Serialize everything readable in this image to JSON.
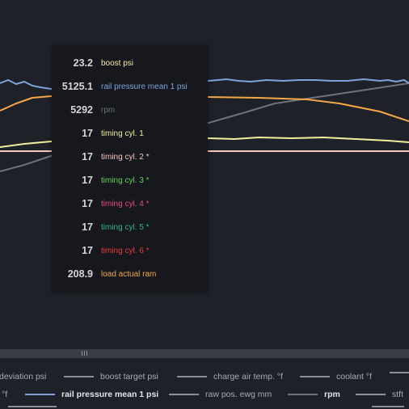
{
  "tooltip": {
    "rows": [
      {
        "value": "23.2",
        "name": "boost psi",
        "color": "#f3e7a9"
      },
      {
        "value": "5125.1",
        "name": "rail pressure mean 1 psi",
        "color": "#7ea3db"
      },
      {
        "value": "5292",
        "name": "rpm",
        "color": "#6d717a"
      },
      {
        "value": "17",
        "name": "timing cyl. 1",
        "color": "#f0ef9b"
      },
      {
        "value": "17",
        "name": "timing cyl. 2 *",
        "color": "#f8c8bf"
      },
      {
        "value": "17",
        "name": "timing cyl. 3 *",
        "color": "#66cf56"
      },
      {
        "value": "17",
        "name": "timing cyl. 4 *",
        "color": "#e8477a"
      },
      {
        "value": "17",
        "name": "timing cyl. 5 *",
        "color": "#2fb68a"
      },
      {
        "value": "17",
        "name": "timing cyl. 6 *",
        "color": "#ea3b3b"
      },
      {
        "value": "208.9",
        "name": "load actual ram",
        "color": "#f5a74a"
      }
    ]
  },
  "legend": {
    "row1": [
      {
        "label": "deviation psi",
        "color": "#8b8f98"
      },
      {
        "label": "boost target psi",
        "color": "#8b8f98"
      },
      {
        "label": "charge air temp. °f",
        "color": "#8b8f98"
      },
      {
        "label": "coolant °f",
        "color": "#8b8f98"
      }
    ],
    "row2": [
      {
        "label": "°f",
        "color": "#8b8f98"
      },
      {
        "label": "rail pressure mean 1 psi",
        "color": "#7ea3db"
      },
      {
        "label": "raw pos. ewg mm",
        "color": "#8b8f98"
      },
      {
        "label": "rpm",
        "color": "#6d717a"
      },
      {
        "label": "stft",
        "color": "#8b8f98"
      }
    ]
  },
  "colors": {
    "background": "#1f2129",
    "rail_pressure": "#7ea3db",
    "load": "#f5a74a",
    "rpm": "#6d717a",
    "timing_cyl1": "#f0ef9b",
    "timing_cyl2": "#f8c8bf"
  }
}
